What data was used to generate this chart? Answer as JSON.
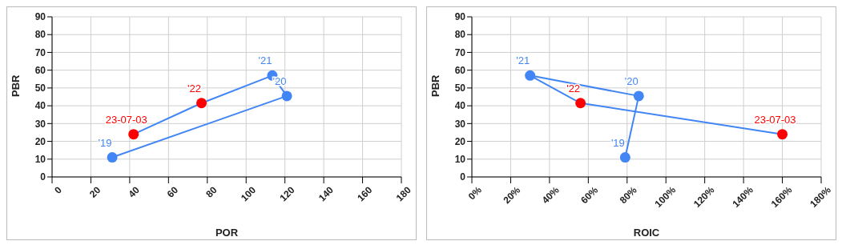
{
  "chart_data": [
    {
      "type": "line",
      "xlabel": "POR",
      "ylabel": "PBR",
      "xlim": [
        0,
        180
      ],
      "xticks": [
        0,
        20,
        40,
        60,
        80,
        100,
        120,
        140,
        160,
        180
      ],
      "ylim": [
        0,
        90
      ],
      "yticks": [
        0,
        10,
        20,
        30,
        40,
        50,
        60,
        70,
        80,
        90
      ],
      "grid": true,
      "legend": false,
      "marker": "circle",
      "line_style": "solid",
      "series": [
        {
          "color": "#4285f4",
          "colors": [
            "#4285f4",
            "#4285f4",
            "#4285f4",
            "#ff0000",
            "#ff0000"
          ],
          "x": [
            31,
            121,
            113.5,
            77,
            42
          ],
          "values": [
            11,
            45.5,
            57,
            41.5,
            24
          ]
        }
      ],
      "annotations": [
        {
          "text": "'19",
          "x": 31,
          "y": 11
        },
        {
          "text": "'20",
          "x": 121,
          "y": 45.5
        },
        {
          "text": "'21",
          "x": 113.5,
          "y": 57
        },
        {
          "text": "'22",
          "x": 77,
          "y": 41.5
        },
        {
          "text": "23-07-03",
          "x": 42,
          "y": 24
        }
      ]
    },
    {
      "type": "line",
      "xlabel": "ROIC",
      "ylabel": "PBR",
      "xlim": [
        0,
        180
      ],
      "xticks": [
        {
          "value": 0,
          "label": "0%"
        },
        {
          "value": 20,
          "label": "20%"
        },
        {
          "value": 40,
          "label": "40%"
        },
        {
          "value": 60,
          "label": "60%"
        },
        {
          "value": 80,
          "label": "80%"
        },
        {
          "value": 100,
          "label": "100%"
        },
        {
          "value": 120,
          "label": "120%"
        },
        {
          "value": 140,
          "label": "140%"
        },
        {
          "value": 160,
          "label": "160%"
        },
        {
          "value": 180,
          "label": "180%"
        }
      ],
      "ylim": [
        0,
        90
      ],
      "yticks": [
        0,
        10,
        20,
        30,
        40,
        50,
        60,
        70,
        80,
        90
      ],
      "grid": true,
      "legend": false,
      "marker": "circle",
      "line_style": "solid",
      "series": [
        {
          "color": "#4285f4",
          "colors": [
            "#4285f4",
            "#4285f4",
            "#4285f4",
            "#ff0000",
            "#ff0000"
          ],
          "x": [
            79,
            86,
            30,
            56,
            160
          ],
          "values": [
            11,
            45.5,
            57,
            41.5,
            24
          ]
        }
      ],
      "annotations": [
        {
          "text": "'19",
          "x": 79,
          "y": 11
        },
        {
          "text": "'20",
          "x": 86,
          "y": 45.5
        },
        {
          "text": "'21",
          "x": 30,
          "y": 57
        },
        {
          "text": "'22",
          "x": 56,
          "y": 41.5
        },
        {
          "text": "23-07-03",
          "x": 160,
          "y": 24
        }
      ]
    }
  ]
}
